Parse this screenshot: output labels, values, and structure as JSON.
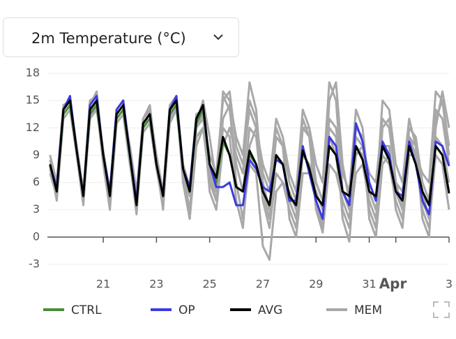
{
  "chart_data": {
    "type": "line",
    "title": "2m Temperature (°C)",
    "x": [
      19,
      19.25,
      19.5,
      19.75,
      20,
      20.25,
      20.5,
      20.75,
      21,
      21.25,
      21.5,
      21.75,
      22,
      22.25,
      22.5,
      22.75,
      23,
      23.25,
      23.5,
      23.75,
      24,
      24.25,
      24.5,
      24.75,
      25,
      25.25,
      25.5,
      25.75,
      26,
      26.25,
      26.5,
      26.75,
      27,
      27.25,
      27.5,
      27.75,
      28,
      28.25,
      28.5,
      28.75,
      29,
      29.25,
      29.5,
      29.75,
      30,
      30.25,
      30.5,
      30.75,
      31,
      31.25,
      31.5,
      31.75,
      32,
      32.25,
      32.5,
      32.75,
      33,
      33.25,
      33.5,
      33.75,
      34
    ],
    "xlim": [
      18.9,
      34
    ],
    "xticks": [
      21,
      23,
      25,
      27,
      29,
      31,
      {
        "value": 32,
        "label": "Apr"
      },
      {
        "value": 34,
        "label": "3"
      }
    ],
    "ylim": [
      -3,
      18
    ],
    "yticks": [
      -3,
      0,
      3,
      6,
      9,
      12,
      15,
      18
    ],
    "grid": true,
    "series": [
      {
        "name": "CTRL",
        "color": "#4a8c3a",
        "values": [
          8,
          5,
          13.5,
          14.5,
          9.5,
          4.5,
          13.5,
          14.5,
          9,
          4.5,
          13,
          14,
          9,
          3.5,
          12,
          13,
          8,
          4.5,
          13.5,
          14.5,
          7.5,
          5,
          12.5,
          14,
          8,
          6,
          10.5,
          9,
          5.5,
          5,
          9,
          8,
          5,
          3.5,
          9,
          8,
          4.5,
          3.5,
          9.5,
          7.5,
          4.5,
          3.5,
          10,
          9,
          5,
          4.5,
          10,
          8.5,
          5,
          4.5,
          10,
          8.5,
          5,
          4,
          10,
          8,
          5,
          3.5,
          10,
          9,
          5
        ]
      },
      {
        "name": "OP",
        "color": "#3b3be0",
        "values": [
          7.8,
          5.5,
          14,
          15.5,
          9.5,
          4.5,
          14.5,
          15.5,
          9,
          5,
          14,
          15,
          9,
          4,
          12.5,
          13.5,
          8,
          4.5,
          14,
          15.5,
          7.5,
          5.5,
          13,
          14.5,
          8,
          5.5,
          5.5,
          6,
          3.5,
          3.5,
          8.5,
          7.5,
          5.5,
          5,
          8.5,
          8,
          4,
          4,
          10,
          7,
          4,
          2,
          11,
          10,
          5,
          3.5,
          12.5,
          10.5,
          6,
          4,
          10.5,
          9,
          5,
          4.5,
          10.5,
          8,
          4,
          2.5,
          10.5,
          10,
          7.8
        ]
      },
      {
        "name": "AVG",
        "color": "#000000",
        "values": [
          8,
          5,
          14,
          15,
          9.5,
          4.5,
          14,
          15,
          9,
          4.5,
          13.5,
          14.5,
          9,
          3.5,
          12.5,
          13.5,
          8,
          4.5,
          14,
          15,
          7.5,
          5,
          13,
          14.5,
          8,
          6.5,
          11,
          9,
          5.5,
          5,
          9.5,
          8,
          5,
          3.5,
          9,
          8,
          4.5,
          3.5,
          9.5,
          7.5,
          4.5,
          3.5,
          10,
          9,
          5,
          4.5,
          10,
          8.5,
          5,
          4.5,
          10,
          8.5,
          5,
          4,
          10,
          8,
          5,
          3.5,
          10,
          9,
          4.8
        ]
      },
      {
        "name": "MEM",
        "color": "#a8a8a8",
        "members": [
          [
            8.5,
            5,
            13.5,
            14.5,
            9,
            3.5,
            13.5,
            15,
            8.5,
            3.5,
            13,
            14,
            8.5,
            2.5,
            12,
            14,
            7.5,
            3.5,
            13,
            14.5,
            7,
            4.5,
            12.5,
            15,
            11,
            6,
            15.5,
            14,
            8,
            5,
            12,
            11,
            4,
            1,
            7,
            6,
            3,
            1,
            9,
            8,
            6,
            4,
            13,
            12,
            7,
            5,
            14,
            12,
            5,
            3,
            9,
            8,
            4,
            2,
            12,
            11,
            6,
            4,
            14,
            13,
            8
          ],
          [
            7.5,
            4.5,
            14,
            15,
            10,
            5,
            14.5,
            16,
            9,
            5,
            14,
            15,
            9.5,
            4,
            13,
            14.5,
            8.5,
            5,
            14.5,
            15.5,
            6.5,
            2,
            12,
            13.5,
            5,
            3,
            10,
            12,
            9,
            7,
            15,
            13,
            7,
            5,
            12,
            10,
            6,
            4,
            13,
            11,
            3,
            0.5,
            8,
            7,
            4,
            2,
            11,
            10,
            7,
            6,
            13,
            12,
            6,
            5,
            11,
            9,
            3,
            1,
            9,
            8,
            3
          ],
          [
            9,
            6,
            14.5,
            15,
            9.5,
            5,
            14,
            15,
            9.5,
            5,
            13.5,
            14.5,
            8.5,
            3,
            12.5,
            13,
            8,
            4,
            13.5,
            15,
            8,
            5.5,
            13.5,
            14,
            7,
            4,
            13,
            14.5,
            6,
            2,
            8,
            7,
            -1,
            -2.5,
            5,
            6,
            5,
            3,
            12,
            11,
            4,
            1,
            15,
            17,
            8,
            4,
            10,
            9,
            3,
            1,
            12,
            13,
            6,
            3,
            10,
            8,
            5,
            2,
            13,
            15,
            10
          ],
          [
            8,
            4,
            13,
            14,
            9,
            4,
            13,
            14.5,
            8,
            3,
            12.5,
            13.5,
            8,
            3,
            11.5,
            12.5,
            7.5,
            4,
            12.5,
            14,
            8,
            5,
            12,
            13,
            9,
            7,
            15,
            16,
            10,
            8,
            14,
            12,
            6,
            3,
            11,
            10,
            2,
            0,
            7,
            7,
            5,
            3,
            12,
            11,
            2,
            -0.5,
            9,
            10,
            6,
            4,
            15,
            14,
            8,
            6,
            13,
            10,
            4,
            2,
            11,
            10,
            6
          ],
          [
            7,
            4.5,
            13.5,
            14.5,
            9,
            4.5,
            13,
            14,
            9,
            4,
            13,
            14,
            10,
            5,
            13,
            14,
            9,
            5,
            14,
            15,
            7,
            3,
            11,
            12,
            6,
            4,
            12,
            11,
            4,
            1,
            10,
            12,
            8,
            6,
            13,
            11,
            7,
            5,
            14,
            12,
            6,
            4,
            11,
            9,
            3,
            1,
            7,
            8,
            4,
            2,
            10,
            10,
            3,
            1,
            9,
            9,
            7,
            6,
            16,
            15,
            9
          ],
          [
            8,
            5,
            14,
            15,
            10,
            5,
            15,
            15.5,
            9,
            4.5,
            14,
            15,
            9,
            3,
            13,
            14,
            8,
            3,
            13.5,
            15,
            6,
            2,
            10,
            12,
            8,
            5,
            16,
            15,
            11,
            9,
            17,
            14,
            5,
            2,
            9,
            8,
            4,
            2,
            12,
            12,
            8,
            6,
            17,
            15,
            5,
            3,
            12,
            11,
            2,
            0,
            8,
            9,
            5,
            3,
            11,
            10,
            2,
            0,
            12,
            16,
            12
          ]
        ]
      }
    ]
  }
}
